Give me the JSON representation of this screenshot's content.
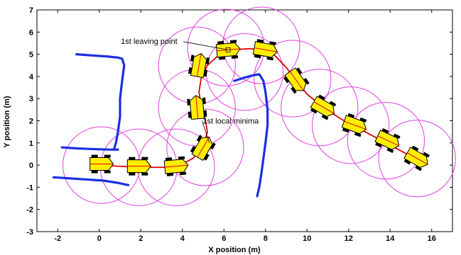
{
  "chart_data": {
    "type": "scatter",
    "xlabel": "X position (m)",
    "ylabel": "Y position (m)",
    "xlim": [
      -3,
      17
    ],
    "ylim": [
      -3,
      7
    ],
    "x_ticks": [
      "-2",
      "0",
      "2",
      "4",
      "6",
      "8",
      "10",
      "12",
      "14",
      "16"
    ],
    "y_ticks": [
      "-3",
      "-2",
      "-1",
      "0",
      "1",
      "2",
      "3",
      "4",
      "5",
      "6",
      "7"
    ],
    "grid": false,
    "annotations": [
      {
        "text": "1st leaving point",
        "x": 4.8,
        "y": 5.6
      },
      {
        "text": "1st local minima",
        "x": 7.1,
        "y": 2.0
      }
    ],
    "obstacles": [
      {
        "x": [
          -1.1,
          -0.4,
          0.4,
          0.9,
          1.1,
          1.2,
          1.1,
          1.0,
          1.0,
          0.9,
          0.8,
          0.7
        ],
        "y": [
          5.0,
          4.95,
          4.9,
          4.85,
          4.8,
          4.5,
          3.8,
          3.0,
          2.2,
          1.5,
          1.0,
          0.7
        ]
      },
      {
        "x": [
          -1.8,
          -1.0,
          -0.2,
          0.5,
          0.9
        ],
        "y": [
          0.8,
          0.75,
          0.72,
          0.7,
          0.7
        ]
      },
      {
        "x": [
          -2.2,
          -1.4,
          -0.6,
          0.2,
          0.9,
          1.4
        ],
        "y": [
          -0.55,
          -0.6,
          -0.65,
          -0.7,
          -0.8,
          -0.9
        ]
      },
      {
        "x": [
          6.5,
          7.0,
          7.4,
          7.7,
          7.9,
          8.0,
          8.1,
          8.1,
          8.0,
          7.9,
          7.8,
          7.7,
          7.6
        ],
        "y": [
          3.8,
          3.95,
          4.05,
          4.1,
          3.8,
          3.3,
          2.5,
          1.8,
          1.0,
          0.3,
          -0.4,
          -1.0,
          -1.4
        ]
      }
    ],
    "circles": [
      {
        "x": 0.1,
        "y": 0.0
      },
      {
        "x": 1.9,
        "y": -0.1
      },
      {
        "x": 3.7,
        "y": -0.1
      },
      {
        "x": 5.1,
        "y": 0.8
      },
      {
        "x": 4.7,
        "y": 2.6
      },
      {
        "x": 4.7,
        "y": 4.5
      },
      {
        "x": 6.1,
        "y": 5.3
      },
      {
        "x": 7.8,
        "y": 5.4
      },
      {
        "x": 9.3,
        "y": 3.9
      },
      {
        "x": 10.6,
        "y": 2.6
      },
      {
        "x": 12.1,
        "y": 1.8
      },
      {
        "x": 13.8,
        "y": 1.1
      },
      {
        "x": 15.3,
        "y": 0.3
      },
      {
        "x": 7.0,
        "y": 4.2
      }
    ],
    "robots": [
      {
        "x": 0.1,
        "y": 0.05,
        "heading": 0
      },
      {
        "x": 1.9,
        "y": -0.05,
        "heading": 0
      },
      {
        "x": 3.7,
        "y": -0.05,
        "heading": 5
      },
      {
        "x": 5.0,
        "y": 0.8,
        "heading": 60
      },
      {
        "x": 4.7,
        "y": 2.6,
        "heading": 95
      },
      {
        "x": 4.8,
        "y": 4.5,
        "heading": 80
      },
      {
        "x": 6.2,
        "y": 5.2,
        "heading": 5
      },
      {
        "x": 8.0,
        "y": 5.2,
        "heading": -10
      },
      {
        "x": 9.5,
        "y": 3.8,
        "heading": -55
      },
      {
        "x": 10.8,
        "y": 2.6,
        "heading": -30
      },
      {
        "x": 12.3,
        "y": 1.8,
        "heading": -20
      },
      {
        "x": 13.9,
        "y": 1.1,
        "heading": -25
      },
      {
        "x": 15.3,
        "y": 0.3,
        "heading": -30
      }
    ],
    "path": {
      "x": [
        0.0,
        1.9,
        3.7,
        4.5,
        5.0,
        5.2,
        5.1,
        4.9,
        4.8,
        4.9,
        5.2,
        5.8,
        6.4,
        7.2,
        8.0,
        8.5,
        9.0,
        9.5,
        10.0,
        10.8,
        11.6,
        12.4,
        13.2,
        14.0,
        14.8,
        15.3
      ],
      "y": [
        0.0,
        -0.1,
        -0.1,
        0.3,
        0.8,
        1.5,
        2.1,
        2.7,
        3.3,
        3.9,
        4.5,
        5.0,
        5.2,
        5.25,
        5.2,
        4.9,
        4.4,
        3.8,
        3.2,
        2.6,
        2.1,
        1.7,
        1.3,
        0.9,
        0.5,
        0.3
      ]
    }
  }
}
